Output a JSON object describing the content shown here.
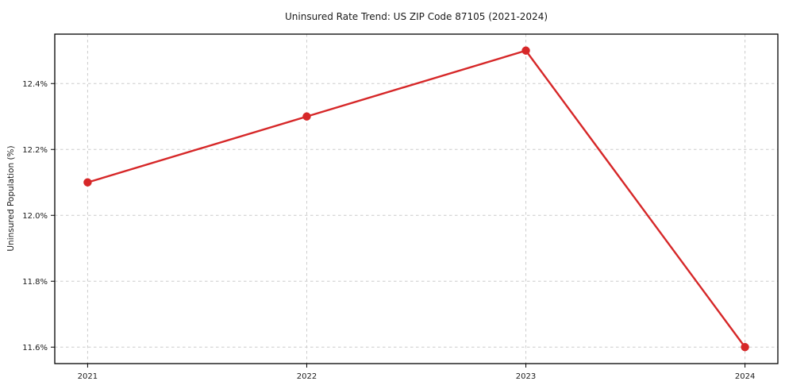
{
  "chart_data": {
    "type": "line",
    "title": "Uninsured Rate Trend: US ZIP Code 87105 (2021-2024)",
    "xlabel": "",
    "ylabel": "Uninsured Population (%)",
    "categories": [
      2021,
      2022,
      2023,
      2024
    ],
    "values": [
      12.1,
      12.3,
      12.5,
      11.6
    ],
    "xtick_labels": [
      "2021",
      "2022",
      "2023",
      "2024"
    ],
    "yticks": [
      11.6,
      11.8,
      12.0,
      12.2,
      12.4
    ],
    "ytick_labels": [
      "11.6%",
      "11.8%",
      "12.0%",
      "12.2%",
      "12.4%"
    ],
    "xlim": [
      2020.85,
      2024.15
    ],
    "ylim": [
      11.55,
      12.55
    ],
    "grid": true,
    "legend": "none",
    "line_color": "#d62728",
    "marker": "circle",
    "grid_color": "#cccccc",
    "axis_color": "#000000",
    "text_color": "#1a1a1a",
    "background": "#ffffff"
  }
}
